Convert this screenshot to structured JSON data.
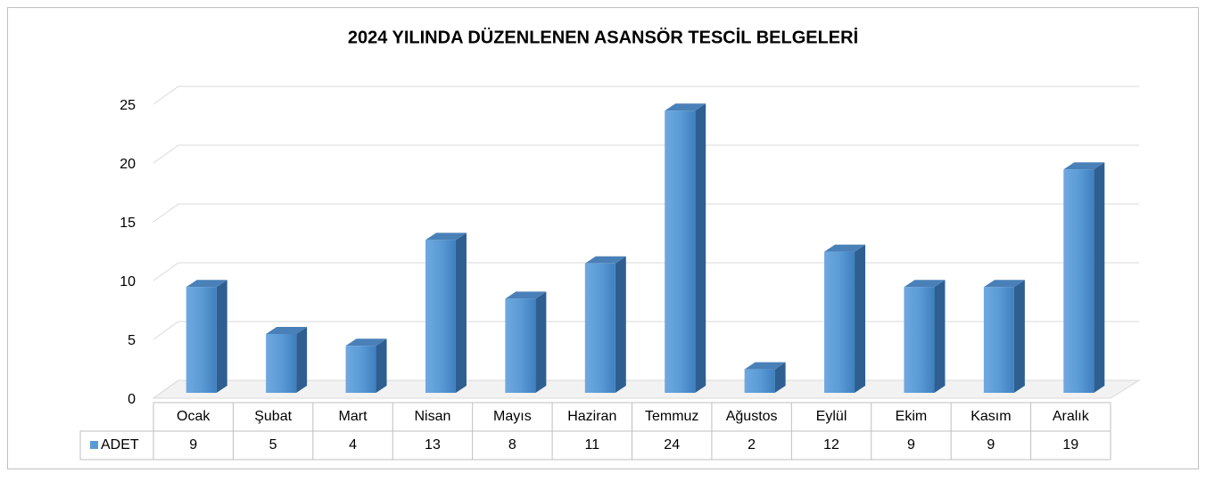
{
  "chart_data": {
    "type": "bar",
    "title": "2024 YILINDA DÜZENLENEN ASANSÖR TESCİL BELGELERİ",
    "categories": [
      "Ocak",
      "Şubat",
      "Mart",
      "Nisan",
      "Mayıs",
      "Haziran",
      "Temmuz",
      "Ağustos",
      "Eylül",
      "Ekim",
      "Kasım",
      "Aralık"
    ],
    "series": [
      {
        "name": "ADET",
        "color": "#5b9bd5",
        "values": [
          9,
          5,
          4,
          13,
          8,
          11,
          24,
          2,
          12,
          9,
          9,
          19
        ]
      }
    ],
    "ylim": [
      0,
      25
    ],
    "yticks": [
      0,
      5,
      10,
      15,
      20,
      25
    ],
    "grid": true
  }
}
